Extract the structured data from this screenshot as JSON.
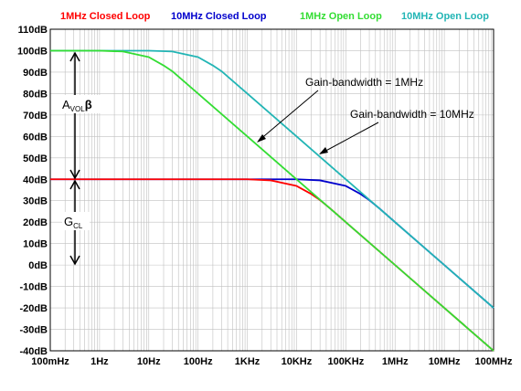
{
  "chart_data": {
    "type": "line",
    "xscale": "log",
    "xlim": [
      0.1,
      100000000
    ],
    "ylim": [
      -40,
      110
    ],
    "grid": true,
    "legend_position": "top",
    "x_tick_labels": [
      "100mHz",
      "1Hz",
      "10Hz",
      "100Hz",
      "1KHz",
      "10KHz",
      "100KHz",
      "1MHz",
      "10MHz",
      "100MHz"
    ],
    "y_tick_labels": [
      "110dB",
      "100dB",
      "90dB",
      "80dB",
      "70dB",
      "60dB",
      "50dB",
      "40dB",
      "30dB",
      "20dB",
      "10dB",
      "0dB",
      "-10dB",
      "-20dB",
      "-30dB",
      "-40dB"
    ],
    "series": [
      {
        "name": "1MHz Closed Loop",
        "color": "#ff0000",
        "x": [
          0.1,
          1,
          10,
          100,
          1000,
          3000,
          10000,
          20000,
          30000,
          50000,
          100000,
          1000000,
          10000000,
          100000000
        ],
        "y": [
          40,
          40,
          40,
          40,
          40,
          39.5,
          36.9,
          33.1,
          30.3,
          26.1,
          20,
          0,
          -20,
          -40
        ]
      },
      {
        "name": "10MHz Closed Loop",
        "color": "#0000cc",
        "x": [
          0.1,
          1,
          10,
          100,
          1000,
          10000,
          30000,
          100000,
          200000,
          300000,
          500000,
          1000000,
          10000000,
          100000000
        ],
        "y": [
          40,
          40,
          40,
          40,
          40,
          40,
          39.5,
          36.9,
          33.1,
          30.3,
          26.1,
          20,
          0,
          -20
        ]
      },
      {
        "name": "1MHz Open Loop",
        "color": "#33dd33",
        "x": [
          0.1,
          1,
          3,
          10,
          20,
          30,
          100,
          1000,
          10000,
          100000,
          1000000,
          10000000,
          100000000
        ],
        "y": [
          100,
          100,
          99.6,
          97,
          93.1,
          90.4,
          80,
          60,
          40,
          20,
          0,
          -20,
          -40
        ]
      },
      {
        "name": "10MHz Open Loop",
        "color": "#22b5b5",
        "x": [
          0.1,
          1,
          10,
          30,
          100,
          200,
          300,
          1000,
          10000,
          100000,
          1000000,
          10000000,
          100000000
        ],
        "y": [
          100,
          100,
          100,
          99.6,
          97,
          93.1,
          90.4,
          80,
          60,
          40,
          20,
          0,
          -20
        ]
      }
    ],
    "annotations": {
      "gbw_1mhz": "Gain-bandwidth = 1MHz",
      "gbw_10mhz": "Gain-bandwidth = 10MHz",
      "avol_label": {
        "main": "A",
        "sub": "VOL",
        "tail": "β"
      },
      "gcl_label": {
        "main": "G",
        "sub": "CL"
      }
    }
  }
}
